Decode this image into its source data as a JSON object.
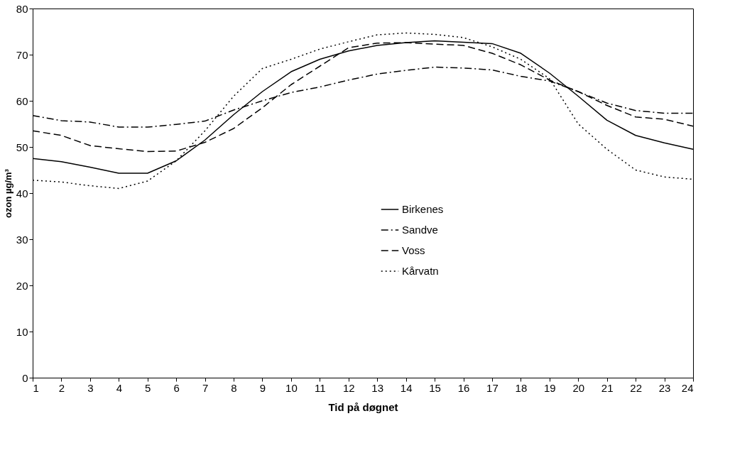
{
  "chart_data": {
    "type": "line",
    "xlabel": "Tid på døgnet",
    "ylabel": "ozon µg/m³",
    "x": [
      1,
      2,
      3,
      4,
      5,
      6,
      7,
      8,
      9,
      10,
      11,
      12,
      13,
      14,
      15,
      16,
      17,
      18,
      19,
      20,
      21,
      22,
      23,
      24
    ],
    "xlim": [
      1,
      24
    ],
    "xticks": [
      1,
      2,
      3,
      4,
      5,
      6,
      7,
      8,
      9,
      10,
      11,
      12,
      13,
      14,
      15,
      16,
      17,
      18,
      19,
      20,
      21,
      22,
      23,
      24
    ],
    "ylim": [
      0,
      80
    ],
    "yticks": [
      0,
      10,
      20,
      30,
      40,
      50,
      60,
      70,
      80
    ],
    "grid": false,
    "legend": "center",
    "marker": "none",
    "series": [
      {
        "name": "Birkenes",
        "color": "#000000",
        "line_style": "solid",
        "values": [
          47.5,
          46.8,
          45.6,
          44.3,
          44.3,
          47,
          51.5,
          57,
          62,
          66.3,
          69,
          70.8,
          72,
          72.6,
          73,
          72.7,
          72.4,
          70.3,
          66,
          61,
          55.8,
          52.5,
          50.9,
          49.5
        ]
      },
      {
        "name": "Sandve",
        "color": "#000000",
        "line_style": "dashdot",
        "values": [
          56.8,
          55.7,
          55.4,
          54.3,
          54.3,
          54.9,
          55.6,
          58,
          60,
          61.8,
          63,
          64.5,
          65.8,
          66.6,
          67.3,
          67.1,
          66.7,
          65.3,
          64.3,
          62,
          59.5,
          57.9,
          57.3,
          57.3
        ]
      },
      {
        "name": "Voss",
        "color": "#000000",
        "line_style": "dashed",
        "values": [
          53.5,
          52.5,
          50.3,
          49.6,
          49,
          49.1,
          51,
          54,
          58.5,
          63.5,
          67.5,
          71.5,
          72.5,
          72.6,
          72.3,
          72,
          70.3,
          67.8,
          64.5,
          62,
          59,
          56.5,
          56,
          54.5
        ]
      },
      {
        "name": "Kårvatn",
        "color": "#000000",
        "line_style": "dotted",
        "values": [
          42.8,
          42.4,
          41.6,
          41,
          42.6,
          47,
          53.5,
          61,
          67,
          69,
          71.2,
          72.8,
          74.3,
          74.7,
          74.4,
          73.7,
          71.7,
          69,
          64.8,
          55,
          49.5,
          45,
          43.5,
          43
        ]
      }
    ]
  }
}
